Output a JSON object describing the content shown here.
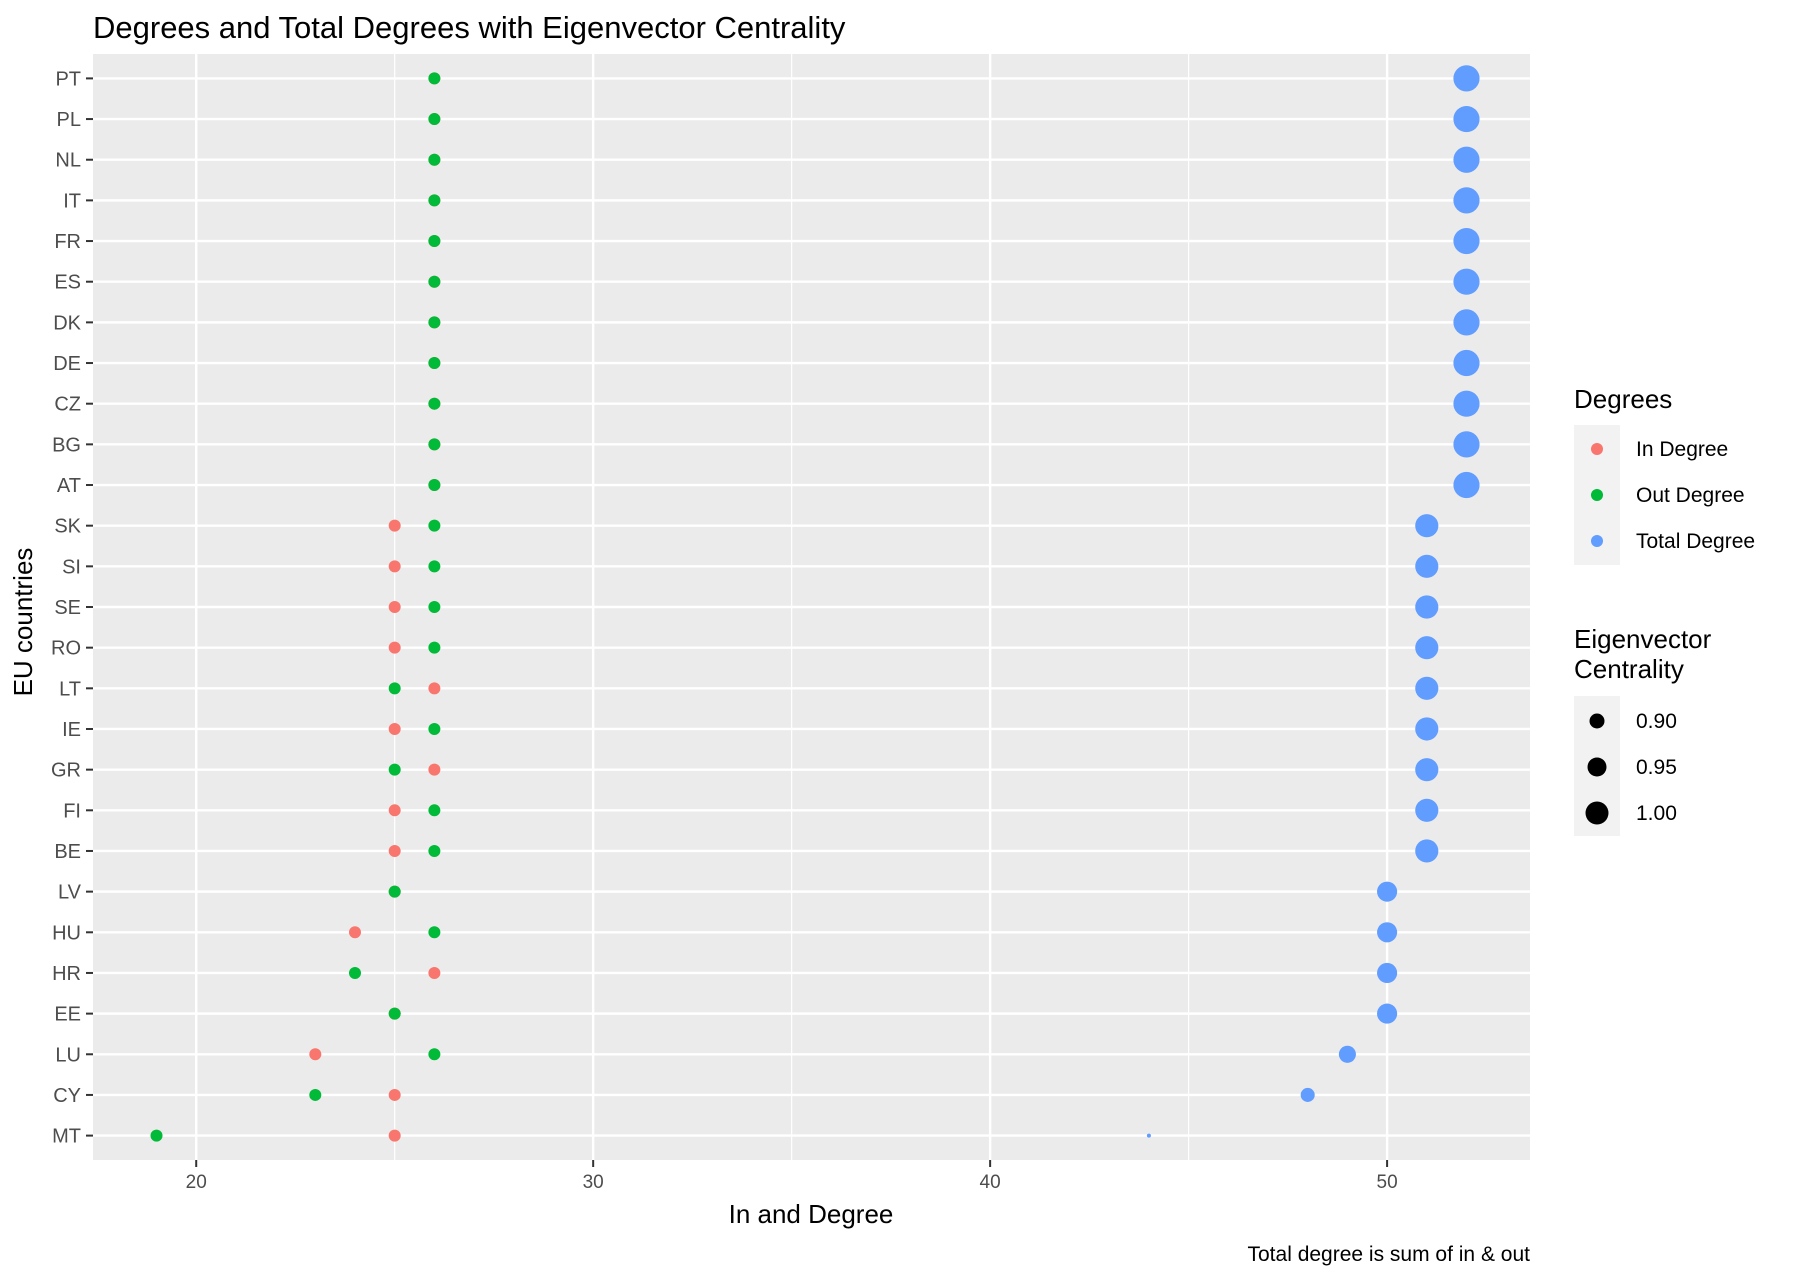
{
  "chart_data": {
    "type": "scatter",
    "title": "Degrees and Total Degrees with Eigenvector Centrality",
    "xlabel": "In and Degree",
    "ylabel": "EU countries",
    "caption": "Total degree is sum of in & out",
    "xlim": [
      17.4,
      53.6
    ],
    "x_ticks": [
      20,
      30,
      40,
      50
    ],
    "x_tick_labels": [
      "20",
      "30",
      "40",
      "50"
    ],
    "grid": true,
    "legend_position": "right",
    "categories": [
      "PT",
      "PL",
      "NL",
      "IT",
      "FR",
      "ES",
      "DK",
      "DE",
      "CZ",
      "BG",
      "AT",
      "SK",
      "SI",
      "SE",
      "RO",
      "LT",
      "IE",
      "GR",
      "FI",
      "BE",
      "LV",
      "HU",
      "HR",
      "EE",
      "LU",
      "CY",
      "MT"
    ],
    "series": [
      {
        "name": "In Degree",
        "color": "#F8766D",
        "values": [
          26,
          26,
          26,
          26,
          26,
          26,
          26,
          26,
          26,
          26,
          26,
          25,
          25,
          25,
          25,
          26,
          25,
          26,
          25,
          25,
          25,
          24,
          26,
          25,
          23,
          25,
          25
        ]
      },
      {
        "name": "Out Degree",
        "color": "#00BA38",
        "values": [
          26,
          26,
          26,
          26,
          26,
          26,
          26,
          26,
          26,
          26,
          26,
          26,
          26,
          26,
          26,
          25,
          26,
          25,
          26,
          26,
          25,
          26,
          24,
          25,
          26,
          23,
          19
        ]
      },
      {
        "name": "Total Degree",
        "color": "#619CFF",
        "values": [
          52,
          52,
          52,
          52,
          52,
          52,
          52,
          52,
          52,
          52,
          52,
          51,
          51,
          51,
          51,
          51,
          51,
          51,
          51,
          51,
          50,
          50,
          50,
          50,
          49,
          48,
          44
        ]
      }
    ],
    "eigenvector_centrality": [
      1.0,
      1.0,
      1.0,
      1.0,
      1.0,
      1.0,
      1.0,
      1.0,
      1.0,
      1.0,
      1.0,
      0.98,
      0.98,
      0.98,
      0.98,
      0.98,
      0.98,
      0.98,
      0.98,
      0.98,
      0.96,
      0.96,
      0.96,
      0.96,
      0.94,
      0.92,
      0.85
    ],
    "legends": {
      "color": {
        "title": "Degrees",
        "items": [
          "In Degree",
          "Out Degree",
          "Total Degree"
        ]
      },
      "size": {
        "title_lines": [
          "Eigenvector",
          "Centrality"
        ],
        "items": [
          "0.90",
          "0.95",
          "1.00"
        ]
      }
    }
  }
}
